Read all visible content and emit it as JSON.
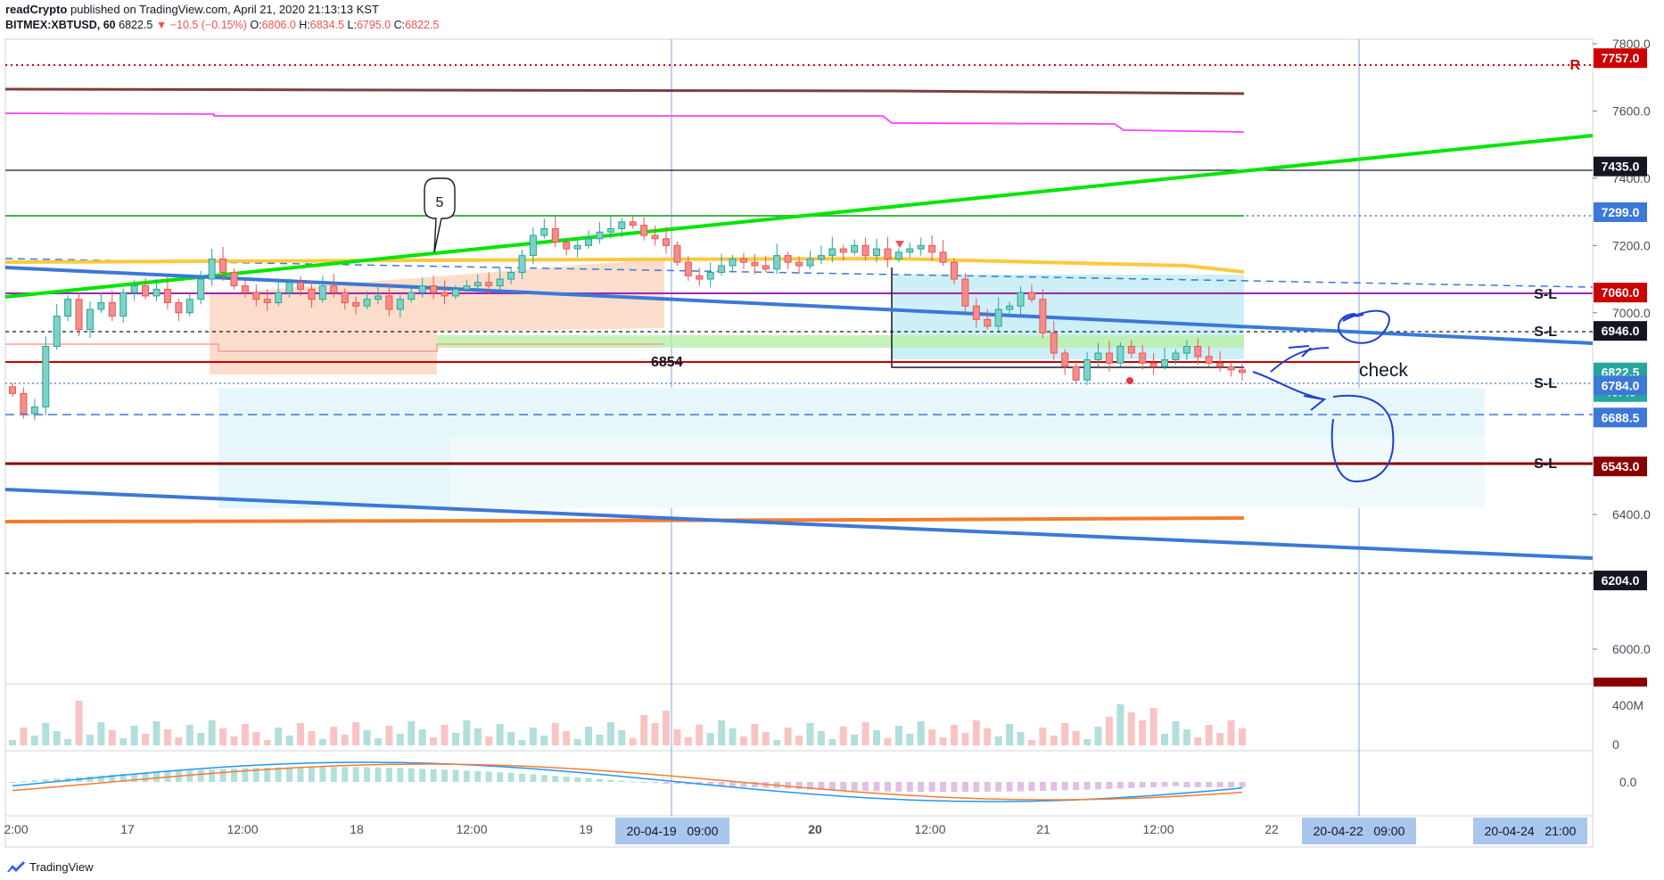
{
  "header": {
    "author": "readCrypto",
    "published_text": "published on TradingView.com, April 21, 2020 21:13:13 KST",
    "symbol": "BITMEX:XBTUSD, 60",
    "last": "6822.5",
    "change": "−10.5 (−0.15%)",
    "o_label": "O:",
    "o": "6806.0",
    "h_label": "H:",
    "h": "6834.5",
    "l_label": "L:",
    "l": "6795.0",
    "c_label": "C:",
    "c": "6822.5"
  },
  "footer": {
    "brand": "TradingView"
  },
  "annotations": {
    "wave_label": "5",
    "level_6854": "6854",
    "check": "check",
    "r_marker": "R",
    "sl": "S-L"
  },
  "colors": {
    "up": "#26a69a",
    "down": "#ef5350",
    "green_trend": "#00e600",
    "blue_trend": "#3c78d8",
    "resistance_red": "#cc0000",
    "support_dark_red": "#8b0000",
    "orange_ma": "#f57c2e",
    "yellow_ma": "#ffc83d",
    "magenta": "#ff40ff",
    "brown_ma": "#7b3f3f",
    "purple": "#9c27b0",
    "pen_blue": "#1f3fd0"
  },
  "chart_data": [
    {
      "type": "candlestick",
      "symbol": "BITMEX:XBTUSD",
      "timeframe": "60",
      "ylim": [
        5860,
        7830
      ],
      "y_ticks": [
        "7800.0",
        "7600.0",
        "7400.0",
        "7200.0",
        "7000.0",
        "6400.0",
        "6000.0"
      ],
      "price_labels": [
        {
          "value": "7757.0",
          "style": "red"
        },
        {
          "value": "7435.0",
          "style": "black"
        },
        {
          "value": "7299.0",
          "style": "blue"
        },
        {
          "value": "7060.0",
          "style": "red"
        },
        {
          "value": "6946.0",
          "style": "black"
        },
        {
          "value": "6822.5",
          "style": "teal"
        },
        {
          "value": "46:49",
          "style": "teal"
        },
        {
          "value": "6784.0",
          "style": "blue"
        },
        {
          "value": "6688.5",
          "style": "blue"
        },
        {
          "value": "6543.0",
          "style": "red"
        },
        {
          "value": "6204.0",
          "style": "black"
        }
      ],
      "x_ticks": [
        "2:00",
        "17",
        "12:00",
        "18",
        "12:00",
        "19",
        "20",
        "12:00",
        "21",
        "12:00",
        "22"
      ],
      "x_highlight_labels": [
        "20-04-19   09:00",
        "20-04-22   09:00",
        "20-04-24   21:00"
      ],
      "closes": [
        6760,
        6700,
        6720,
        6900,
        6990,
        7040,
        6950,
        7010,
        7030,
        6990,
        7060,
        7080,
        7050,
        7070,
        7030,
        7000,
        7040,
        7100,
        7160,
        7120,
        7080,
        7060,
        7040,
        7030,
        7060,
        7090,
        7070,
        7040,
        7080,
        7060,
        7030,
        7020,
        7040,
        7050,
        7010,
        7040,
        7060,
        7080,
        7060,
        7050,
        7070,
        7080,
        7090,
        7080,
        7100,
        7120,
        7170,
        7230,
        7250,
        7210,
        7190,
        7200,
        7220,
        7240,
        7250,
        7270,
        7260,
        7230,
        7220,
        7200,
        7150,
        7110,
        7100,
        7120,
        7140,
        7160,
        7150,
        7140,
        7130,
        7170,
        7150,
        7140,
        7160,
        7170,
        7190,
        7180,
        7200,
        7170,
        7190,
        7160,
        7180,
        7190,
        7200,
        7180,
        7150,
        7100,
        7020,
        6980,
        6960,
        7010,
        7020,
        7060,
        7040,
        6940,
        6880,
        6840,
        6800,
        6860,
        6880,
        6850,
        6900,
        6880,
        6850,
        6840,
        6860,
        6880,
        6900,
        6870,
        6850,
        6840,
        6830,
        6822.5
      ],
      "volume_ticks": [
        "400M",
        "0"
      ]
    },
    {
      "type": "macd",
      "y_ticks": [
        "0.0"
      ]
    }
  ]
}
